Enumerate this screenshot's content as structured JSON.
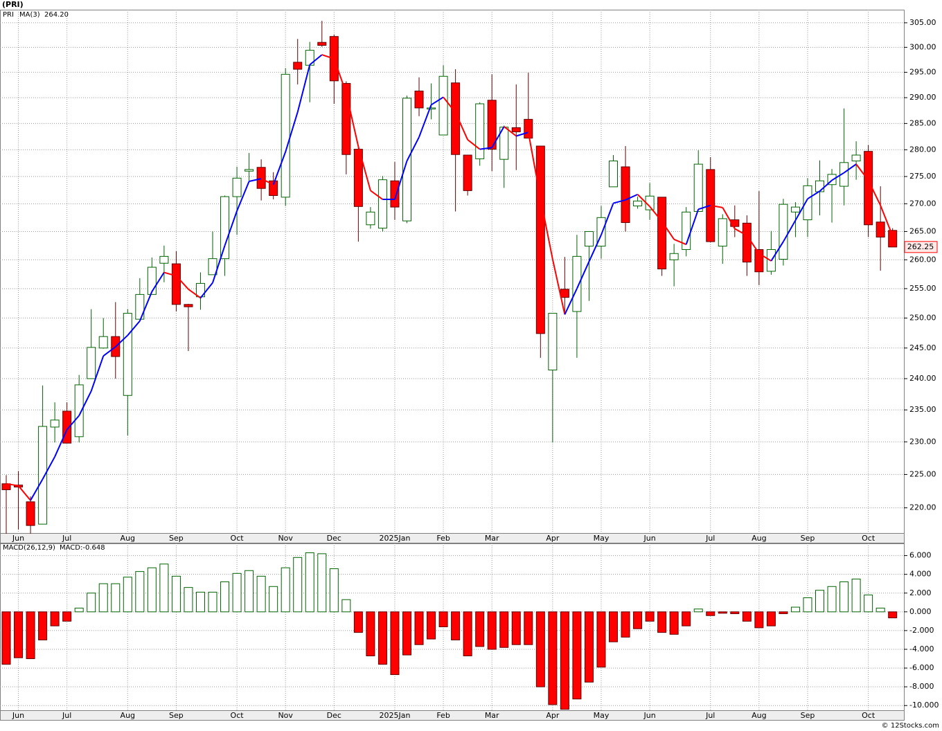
{
  "chart_data": [
    {
      "type": "candlestick",
      "title": "(PRI)",
      "log": true,
      "grid": true,
      "categories": [
        null,
        "Jun",
        null,
        null,
        null,
        "Jul",
        null,
        null,
        null,
        null,
        "Aug",
        null,
        null,
        null,
        "Sep",
        null,
        null,
        null,
        null,
        "Oct",
        null,
        null,
        null,
        "Nov",
        null,
        null,
        null,
        "Dec",
        null,
        null,
        null,
        null,
        "2025Jan",
        null,
        null,
        null,
        "Feb",
        null,
        null,
        null,
        "Mar",
        null,
        null,
        null,
        null,
        "Apr",
        null,
        null,
        null,
        "May",
        null,
        null,
        null,
        "Jun",
        null,
        null,
        null,
        null,
        "Jul",
        null,
        null,
        null,
        "Aug",
        null,
        null,
        null,
        "Sep",
        null,
        null,
        null,
        null,
        "Oct",
        null,
        null
      ],
      "series": [
        {
          "name": "PRI",
          "color": "#006400",
          "up_color": "#006400",
          "down_color": "#ff0000",
          "last_label": "262.25",
          "open": [
            223.6,
            223.4,
            220.9,
            217.6,
            232.3,
            234.8,
            230.8,
            240.0,
            245.0,
            246.9,
            237.3,
            249.8,
            254.0,
            259.4,
            259.3,
            252.3,
            253.6,
            257.4,
            260.2,
            271.3,
            276.0,
            276.7,
            274.2,
            271.2,
            297.0,
            296.4,
            301.0,
            302.2,
            292.8,
            280.1,
            266.2,
            265.6,
            274.2,
            266.9,
            291.3,
            287.8,
            282.8,
            292.9,
            279.0,
            278.3,
            289.5,
            278.2,
            284.2,
            285.8,
            280.7,
            241.4,
            254.9,
            251.1,
            262.4,
            262.4,
            273.1,
            276.8,
            269.6,
            268.9,
            271.2,
            260.0,
            261.8,
            268.6,
            276.3,
            262.4,
            267.1,
            266.5,
            261.8,
            258.0,
            260.1,
            268.5,
            267.1,
            272.2,
            273.5,
            273.2,
            277.9,
            279.7,
            266.7,
            265.2
          ],
          "high": [
            224.9,
            225.5,
            221.7,
            238.9,
            236.2,
            236.2,
            240.6,
            251.5,
            250.0,
            252.7,
            251.5,
            256.8,
            260.4,
            262.5,
            261.5,
            252.4,
            257.8,
            265.0,
            271.5,
            276.8,
            279.4,
            278.2,
            275.8,
            295.8,
            301.7,
            301.1,
            305.4,
            302.6,
            293.2,
            280.8,
            269.4,
            275.1,
            277.7,
            290.4,
            294.0,
            292.8,
            296.4,
            295.6,
            279.0,
            289.1,
            294.6,
            284.6,
            292.6,
            294.9,
            280.7,
            250.8,
            260.5,
            264.4,
            265.0,
            269.6,
            279.0,
            280.7,
            271.3,
            273.8,
            271.2,
            262.8,
            269.4,
            279.9,
            278.6,
            268.1,
            269.7,
            267.9,
            272.3,
            265.1,
            270.9,
            270.3,
            274.7,
            278.0,
            276.4,
            287.9,
            281.6,
            280.9,
            273.2,
            265.6
          ],
          "low": [
            216.2,
            216.8,
            216.2,
            217.6,
            229.9,
            229.8,
            229.9,
            240.0,
            244.9,
            240.0,
            231.0,
            249.8,
            254.0,
            256.1,
            251.1,
            244.5,
            251.4,
            257.4,
            257.2,
            264.4,
            274.2,
            270.6,
            270.8,
            269.6,
            292.6,
            289.1,
            300.1,
            288.8,
            275.4,
            263.2,
            265.5,
            265.0,
            267.1,
            266.5,
            286.4,
            285.8,
            282.8,
            268.6,
            271.5,
            277.0,
            276.0,
            272.9,
            276.2,
            282.2,
            243.4,
            229.9,
            250.9,
            243.4,
            252.9,
            260.2,
            273.1,
            265.0,
            269.1,
            267.1,
            257.2,
            255.4,
            260.6,
            268.6,
            263.1,
            259.3,
            264.0,
            257.2,
            255.6,
            257.4,
            259.0,
            264.0,
            264.0,
            267.9,
            266.6,
            269.7,
            274.4,
            264.0,
            258.1,
            262.25
          ],
          "close": [
            222.7,
            223.1,
            217.4,
            232.4,
            233.4,
            229.8,
            239.0,
            245.1,
            246.9,
            243.6,
            250.8,
            254.0,
            258.7,
            260.6,
            252.3,
            251.9,
            255.9,
            260.2,
            271.3,
            274.7,
            276.3,
            272.8,
            271.5,
            294.6,
            295.6,
            299.4,
            300.4,
            293.3,
            279.1,
            269.5,
            268.5,
            274.4,
            269.4,
            289.9,
            288.0,
            288.0,
            294.2,
            279.1,
            272.4,
            288.8,
            280.1,
            284.3,
            283.4,
            282.2,
            247.4,
            250.8,
            253.5,
            260.6,
            265.0,
            267.5,
            277.9,
            266.6,
            270.5,
            271.4,
            258.4,
            261.1,
            268.5,
            277.3,
            263.2,
            267.3,
            265.9,
            259.6,
            257.9,
            261.8,
            269.9,
            269.4,
            273.3,
            274.2,
            275.4,
            277.6,
            279.0,
            266.2,
            264.0,
            262.25
          ]
        },
        {
          "name": "MA(3)",
          "value_label": "264.20",
          "color": "#0000ff",
          "up_color": "#0000ff",
          "down_color": "#ff0000",
          "values": [
            223.6,
            223.3,
            221.1,
            224.3,
            227.7,
            231.9,
            234.1,
            238.0,
            243.7,
            245.2,
            247.1,
            249.5,
            254.5,
            257.8,
            257.2,
            254.9,
            253.4,
            256.0,
            262.5,
            268.7,
            274.1,
            274.6,
            273.5,
            279.6,
            287.2,
            296.5,
            298.5,
            297.7,
            290.9,
            280.6,
            272.4,
            270.8,
            270.8,
            277.9,
            282.4,
            288.6,
            290.1,
            287.1,
            281.9,
            280.1,
            280.4,
            284.4,
            282.6,
            283.3,
            271.0,
            260.1,
            250.6,
            255.0,
            259.7,
            264.4,
            270.1,
            270.7,
            271.7,
            269.5,
            266.8,
            263.6,
            262.7,
            269.0,
            269.7,
            269.3,
            265.5,
            264.3,
            261.1,
            259.8,
            263.2,
            267.0,
            270.9,
            272.3,
            274.3,
            275.7,
            277.3,
            274.3,
            269.7,
            264.2
          ]
        }
      ],
      "ylim": [
        216.3,
        307.7
      ],
      "yticks": [
        {
          "value": 220,
          "label": "220.00"
        },
        {
          "value": 225,
          "label": "225.00"
        },
        {
          "value": 230,
          "label": "230.00"
        },
        {
          "value": 235,
          "label": "235.00"
        },
        {
          "value": 240,
          "label": "240.00"
        },
        {
          "value": 245,
          "label": "245.00"
        },
        {
          "value": 250,
          "label": "250.00"
        },
        {
          "value": 255,
          "label": "255.00"
        },
        {
          "value": 260,
          "label": "260.00"
        },
        {
          "value": 265,
          "label": "265.00"
        },
        {
          "value": 270,
          "label": "270.00"
        },
        {
          "value": 275,
          "label": "275.00"
        },
        {
          "value": 280,
          "label": "280.00"
        },
        {
          "value": 285,
          "label": "285.00"
        },
        {
          "value": 290,
          "label": "290.00"
        },
        {
          "value": 295,
          "label": "295.00"
        },
        {
          "value": 300,
          "label": "300.00"
        },
        {
          "value": 305,
          "label": "305.00"
        }
      ]
    },
    {
      "type": "bar",
      "title": "MACD(26,12,9)",
      "grid": true,
      "footer": "© 12Stocks.com",
      "series": [
        {
          "name": "MACD",
          "value_label": "MACD:-0.648",
          "color": "#0000ff",
          "pos_color": "#006400",
          "neg_color": "#ff0000",
          "values": [
            -5.6,
            -4.9,
            -5.0,
            -3.0,
            -1.5,
            -1.0,
            0.4,
            2.0,
            3.0,
            3.0,
            3.7,
            4.3,
            4.7,
            5.1,
            3.8,
            2.6,
            2.1,
            2.1,
            3.2,
            4.1,
            4.4,
            3.8,
            2.7,
            4.7,
            5.8,
            6.3,
            6.2,
            4.6,
            1.3,
            -2.2,
            -4.7,
            -5.6,
            -6.7,
            -4.6,
            -3.5,
            -2.9,
            -1.6,
            -3.0,
            -4.7,
            -3.7,
            -4.0,
            -3.8,
            -3.5,
            -3.5,
            -8.0,
            -9.9,
            -10.4,
            -9.3,
            -7.5,
            -5.9,
            -3.2,
            -2.7,
            -1.8,
            -1.0,
            -2.2,
            -2.4,
            -1.5,
            0.3,
            -0.4,
            -0.15,
            -0.2,
            -1.0,
            -1.7,
            -1.5,
            -0.2,
            0.5,
            1.5,
            2.3,
            2.7,
            3.2,
            3.5,
            1.8,
            0.4,
            -0.648
          ]
        }
      ],
      "ylim": [
        -10.5,
        7.3
      ],
      "yticks": [
        {
          "value": -10,
          "label": "-10.000"
        },
        {
          "value": -8,
          "label": "-8.000"
        },
        {
          "value": -6,
          "label": "-6.000"
        },
        {
          "value": -4,
          "label": "-4.000"
        },
        {
          "value": -2,
          "label": "-2.000"
        },
        {
          "value": 0,
          "label": "0.000"
        },
        {
          "value": 2,
          "label": "2.000"
        },
        {
          "value": 4,
          "label": "4.000"
        },
        {
          "value": 6,
          "label": "6.000"
        }
      ]
    }
  ]
}
